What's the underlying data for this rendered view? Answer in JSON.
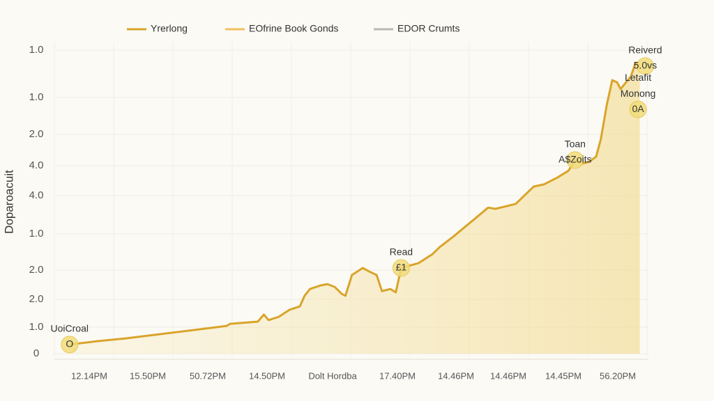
{
  "chart_data": {
    "type": "line",
    "y_axis_label": "Doparoacuit",
    "legend": [
      {
        "name": "Yrerlong",
        "color": "#d9a42a"
      },
      {
        "name": "EOfrine  Book Gonds",
        "color": "#f0c060"
      },
      {
        "name": "EDOR Crumts",
        "color": "#b8b8b8"
      }
    ],
    "y_labels": [
      "1.0",
      "1.0",
      "2.0",
      "4.0",
      "4.0",
      "1.0",
      "2.0",
      "2.0",
      "1.0",
      "0"
    ],
    "x_labels": [
      "12.14PM",
      "15.50PM",
      "50.72PM",
      "14.50PM",
      "Dolt Hordba",
      "17.40PM",
      "14.46PM",
      "14.46PM",
      "14.45PM",
      "56.20PM"
    ],
    "xlim": [
      0,
      100
    ],
    "ylim": [
      0,
      100
    ],
    "color": "#d9a42a",
    "x": [
      2.3,
      7.0,
      11.6,
      17.4,
      23.3,
      28.5,
      29.1,
      33.7,
      34.7,
      35.5,
      37.2,
      39.0,
      40.7,
      41.5,
      42.4,
      44.2,
      45.3,
      46.5,
      47.7,
      48.3,
      49.4,
      51.2,
      52.3,
      53.5,
      54.4,
      55.8,
      56.7,
      57.6,
      60.5,
      62.8,
      64.0,
      66.3,
      69.8,
      72.1,
      73.3,
      76.7,
      79.7,
      81.4,
      83.7,
      85.5,
      86.6,
      87.8,
      89.0,
      90.1,
      90.9,
      91.9,
      92.8,
      93.6,
      94.2,
      95.9,
      96.7,
      97.4
    ],
    "values": [
      3.0,
      4.1,
      5.0,
      6.4,
      7.8,
      9.1,
      9.8,
      10.5,
      12.8,
      11.0,
      12.1,
      14.4,
      15.5,
      19.0,
      21.2,
      22.4,
      22.8,
      21.9,
      19.6,
      19.0,
      25.8,
      28.1,
      26.9,
      25.8,
      20.5,
      21.2,
      20.1,
      28.1,
      29.7,
      32.6,
      34.9,
      38.4,
      44.1,
      47.9,
      47.5,
      49.1,
      54.8,
      55.5,
      57.8,
      60.0,
      63.5,
      62.3,
      63.0,
      64.6,
      70.3,
      81.7,
      89.7,
      89.0,
      86.8,
      90.9,
      95.4,
      94.3
    ],
    "annotations": [
      {
        "lines": [
          "UoiCroal"
        ],
        "marker": "O",
        "x": 2.3,
        "y": 3.0
      },
      {
        "lines": [
          "Read"
        ],
        "marker": "£1",
        "x": 57.6,
        "y": 28.1
      },
      {
        "lines": [
          "Toan"
        ],
        "marker": "A$Zoits",
        "x": 86.6,
        "y": 63.5
      },
      {
        "lines": [
          "Reiverd"
        ],
        "marker": "5.0vs",
        "x": 98.3,
        "y": 94.3
      },
      {
        "lines": [
          "Letafit",
          "Monong"
        ],
        "marker": "0A",
        "x": 97.1,
        "y": 80.1
      }
    ]
  }
}
